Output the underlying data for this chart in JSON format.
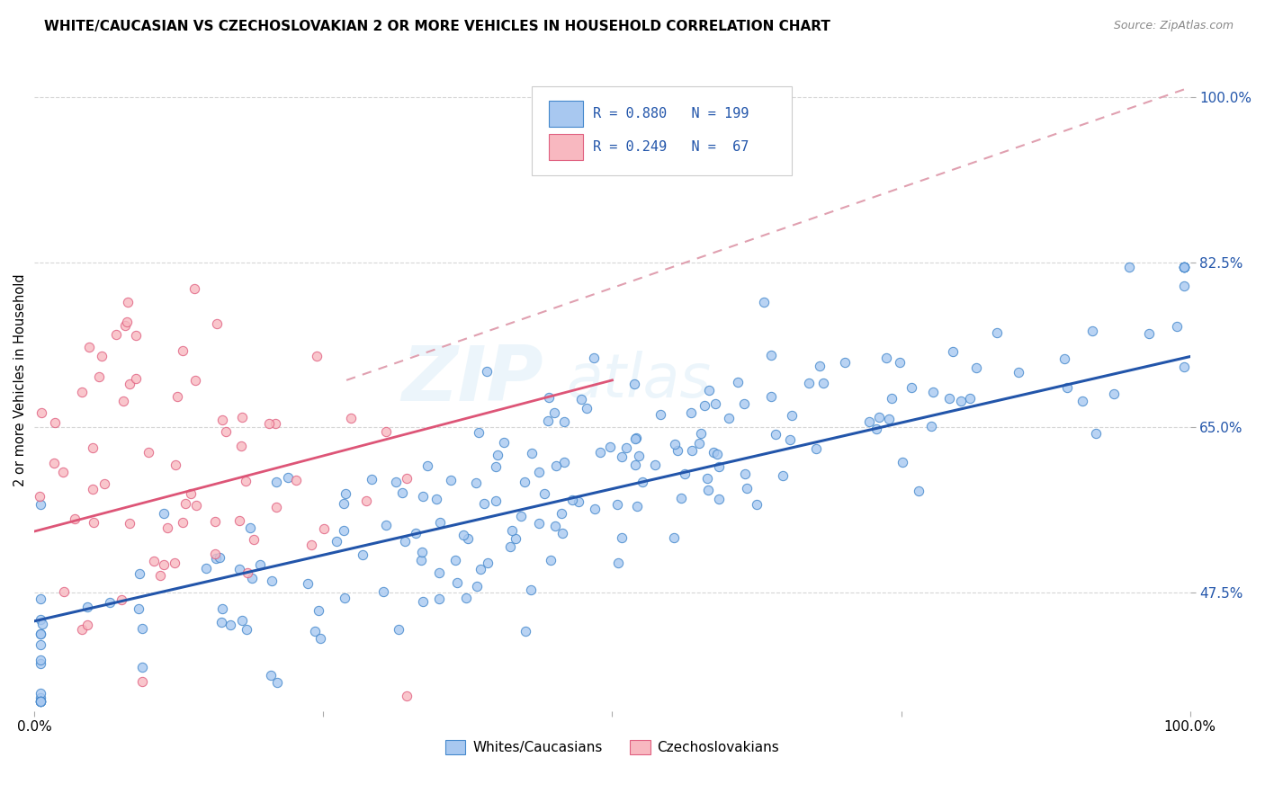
{
  "title": "WHITE/CAUCASIAN VS CZECHOSLOVAKIAN 2 OR MORE VEHICLES IN HOUSEHOLD CORRELATION CHART",
  "source": "Source: ZipAtlas.com",
  "ylabel": "2 or more Vehicles in Household",
  "ytick_vals": [
    47.5,
    65.0,
    82.5,
    100.0
  ],
  "ytick_labels": [
    "47.5%",
    "65.0%",
    "82.5%",
    "100.0%"
  ],
  "legend_label1": "Whites/Caucasians",
  "legend_label2": "Czechoslovakians",
  "R1": 0.88,
  "N1": 199,
  "R2": 0.249,
  "N2": 67,
  "blue_fill": "#a8c8f0",
  "blue_edge": "#4488cc",
  "pink_fill": "#f8b8c0",
  "pink_edge": "#e06080",
  "blue_line": "#2255aa",
  "pink_line": "#dd5577",
  "dash_line": "#e0a0b0",
  "watermark_color": "#d8e8f0",
  "xmin": 0.0,
  "xmax": 1.0,
  "ymin": 35.0,
  "ymax": 105.0,
  "blue_line_x0": 0.0,
  "blue_line_y0": 44.5,
  "blue_line_x1": 1.0,
  "blue_line_y1": 72.5,
  "pink_line_x0": 0.0,
  "pink_line_y0": 54.0,
  "pink_line_x1": 0.5,
  "pink_line_y1": 70.0,
  "dash_line_x0": 0.27,
  "dash_line_y0": 70.0,
  "dash_line_x1": 1.0,
  "dash_line_y1": 101.0
}
